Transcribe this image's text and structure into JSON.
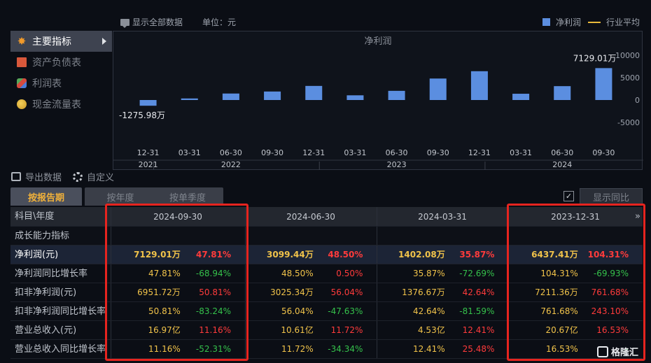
{
  "toolbar": {
    "show_all_label": "显示全部数据",
    "unit_label": "单位：元"
  },
  "legend": {
    "bar_label": "净利润",
    "line_label": "行业平均"
  },
  "sidebar": {
    "items": [
      {
        "label": "主要指标",
        "icon": "star-icon",
        "active": true
      },
      {
        "label": "资产负债表",
        "icon": "document-icon",
        "active": false
      },
      {
        "label": "利润表",
        "icon": "cube-icon",
        "active": false
      },
      {
        "label": "现金流量表",
        "icon": "coins-icon",
        "active": false
      }
    ]
  },
  "actions": {
    "export_label": "导出数据",
    "customize_label": "自定义"
  },
  "colors": {
    "bar": "#5b8ee0",
    "industry_line": "#e8b93a",
    "highlight_box": "#e6241f",
    "positive": "#ff3b3b",
    "negative": "#35c14b",
    "value": "#f1c34a"
  },
  "chart_data": {
    "type": "bar",
    "title": "净利润",
    "categories": [
      "12-31",
      "03-31",
      "06-30",
      "09-30",
      "12-31",
      "03-31",
      "06-30",
      "09-30",
      "12-31",
      "03-31",
      "06-30",
      "09-30"
    ],
    "year_labels": [
      "2021",
      "2022",
      "2023",
      "2024"
    ],
    "series": [
      {
        "name": "净利润",
        "values": [
          -1275.98,
          350,
          1450,
          1900,
          3150,
          1050,
          2050,
          4800,
          6437.41,
          1402.08,
          3099.44,
          7129.01
        ]
      }
    ],
    "y_ticks": [
      "10000",
      "5000",
      "0",
      "-5000"
    ],
    "ylim": [
      -5000,
      10000
    ],
    "annotations": {
      "max_label": "7129.01万",
      "min_label": "-1275.98万"
    }
  },
  "tabs": {
    "items": [
      "按报告期",
      "按年度",
      "按单季度"
    ],
    "compare_label": "显示同比",
    "compare_check": "✓"
  },
  "table": {
    "corner_label": "科目\\年度",
    "periods": [
      "2024-09-30",
      "2024-06-30",
      "2024-03-31",
      "2023-12-31"
    ],
    "more": "»",
    "section_label": "成长能力指标",
    "rows": [
      {
        "label": "净利润(元)",
        "highlight": true,
        "cells": [
          [
            "7129.01万",
            "47.81%"
          ],
          [
            "3099.44万",
            "48.50%"
          ],
          [
            "1402.08万",
            "35.87%"
          ],
          [
            "6437.41万",
            "104.31%"
          ]
        ]
      },
      {
        "label": "净利润同比增长率",
        "highlight": false,
        "cells": [
          [
            "47.81%",
            "-68.94%"
          ],
          [
            "48.50%",
            "0.50%"
          ],
          [
            "35.87%",
            "-72.69%"
          ],
          [
            "104.31%",
            "-69.93%"
          ]
        ]
      },
      {
        "label": "扣非净利润(元)",
        "highlight": false,
        "cells": [
          [
            "6951.72万",
            "50.81%"
          ],
          [
            "3025.34万",
            "56.04%"
          ],
          [
            "1376.67万",
            "42.64%"
          ],
          [
            "7211.36万",
            "761.68%"
          ]
        ]
      },
      {
        "label": "扣非净利润同比增长率",
        "highlight": false,
        "cells": [
          [
            "50.81%",
            "-83.24%"
          ],
          [
            "56.04%",
            "-47.63%"
          ],
          [
            "42.64%",
            "-81.59%"
          ],
          [
            "761.68%",
            "243.10%"
          ]
        ]
      },
      {
        "label": "营业总收入(元)",
        "highlight": false,
        "cells": [
          [
            "16.97亿",
            "11.16%"
          ],
          [
            "10.61亿",
            "11.72%"
          ],
          [
            "4.53亿",
            "12.41%"
          ],
          [
            "20.67亿",
            "16.53%"
          ]
        ]
      },
      {
        "label": "营业总收入同比增长率",
        "highlight": false,
        "cells": [
          [
            "11.16%",
            "-52.31%"
          ],
          [
            "11.72%",
            "-34.34%"
          ],
          [
            "12.41%",
            "25.48%"
          ],
          [
            "16.53%",
            "-"
          ]
        ]
      }
    ]
  },
  "watermark": "格隆汇"
}
